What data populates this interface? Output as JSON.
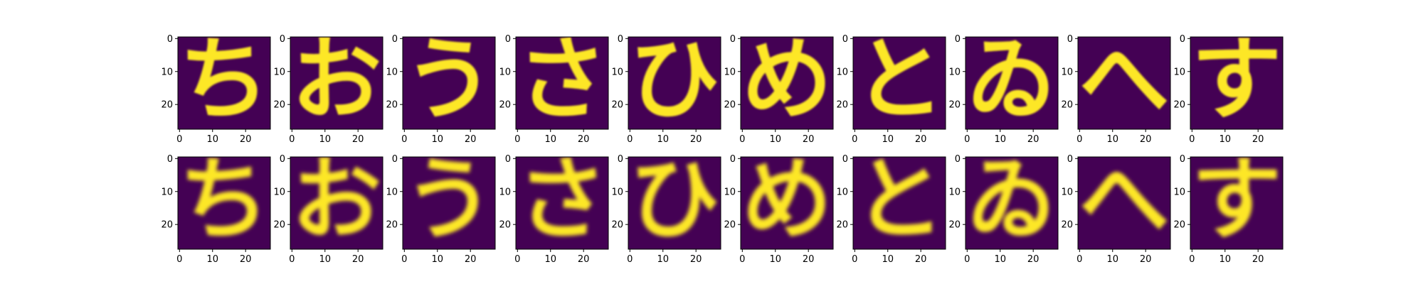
{
  "figure": {
    "background": "#ffffff",
    "colormap": "viridis",
    "colors": {
      "low": "#440154",
      "high": "#fde725",
      "mid": "#21918c"
    }
  },
  "chart_data": {
    "type": "heatmap",
    "layout": "grid of images, 2 rows x 10 columns (top row: originals, bottom row: reconstructions)",
    "image_size": [
      28,
      28
    ],
    "x_ticks": [
      "0",
      "10",
      "20"
    ],
    "y_ticks": [
      "0",
      "10",
      "20"
    ],
    "xlim": [
      -0.5,
      27.5
    ],
    "ylim": [
      27.5,
      -0.5
    ],
    "grid": false,
    "legend": "none",
    "title": "",
    "xlabel": "",
    "ylabel": "",
    "glyph_approximations": [
      "ち",
      "お",
      "う",
      "さ",
      "ひ",
      "め",
      "と",
      "ゐ",
      "へ",
      "す"
    ],
    "rows": [
      {
        "panels": [
          {
            "glyph": "ち",
            "variant": "original"
          },
          {
            "glyph": "お",
            "variant": "original"
          },
          {
            "glyph": "う",
            "variant": "original"
          },
          {
            "glyph": "さ",
            "variant": "original"
          },
          {
            "glyph": "ひ",
            "variant": "original"
          },
          {
            "glyph": "め",
            "variant": "original"
          },
          {
            "glyph": "と",
            "variant": "original"
          },
          {
            "glyph": "ゐ",
            "variant": "original"
          },
          {
            "glyph": "へ",
            "variant": "original"
          },
          {
            "glyph": "す",
            "variant": "original"
          }
        ]
      },
      {
        "panels": [
          {
            "glyph": "ち",
            "variant": "reconstruction"
          },
          {
            "glyph": "お",
            "variant": "reconstruction"
          },
          {
            "glyph": "う",
            "variant": "reconstruction"
          },
          {
            "glyph": "さ",
            "variant": "reconstruction"
          },
          {
            "glyph": "ひ",
            "variant": "reconstruction"
          },
          {
            "glyph": "め",
            "variant": "reconstruction"
          },
          {
            "glyph": "と",
            "variant": "reconstruction"
          },
          {
            "glyph": "ゐ",
            "variant": "reconstruction"
          },
          {
            "glyph": "へ",
            "variant": "reconstruction"
          },
          {
            "glyph": "す",
            "variant": "reconstruction"
          }
        ]
      }
    ]
  }
}
